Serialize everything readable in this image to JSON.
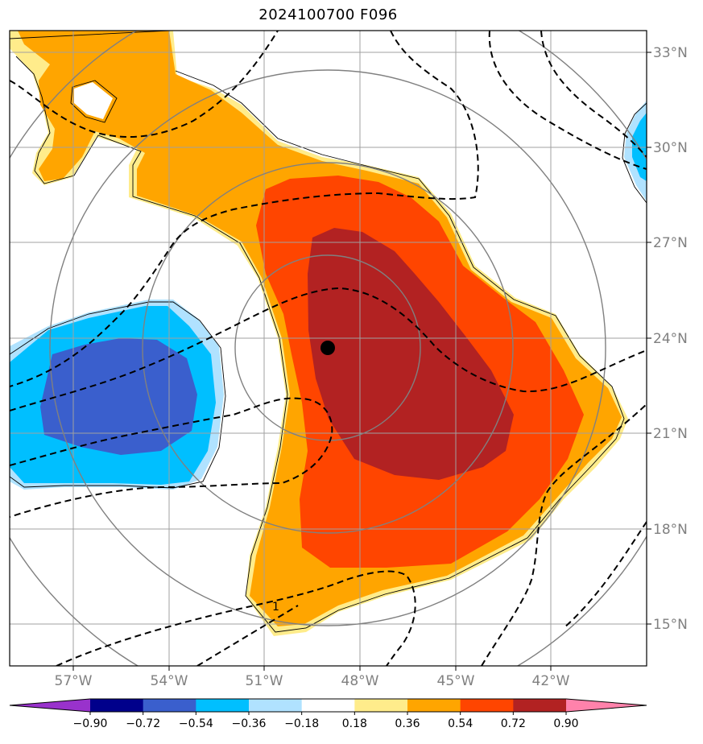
{
  "title": "2024100700 F096",
  "map": {
    "lat_labels": [
      "33°N",
      "30°N",
      "27°N",
      "24°N",
      "21°N",
      "18°N",
      "15°N"
    ],
    "lon_labels": [
      "57°W",
      "54°W",
      "51°W",
      "48°W",
      "45°W",
      "42°W"
    ],
    "contour_label": "1",
    "storm_center": {
      "lat": 23.7,
      "lon": -49.1
    }
  },
  "colorbar": {
    "labels": [
      "−0.90",
      "−0.72",
      "−0.54",
      "−0.36",
      "−0.18",
      "0.18",
      "0.36",
      "0.54",
      "0.72",
      "0.90"
    ],
    "colors": [
      "#9932cc",
      "#00008b",
      "#3a5fcd",
      "#00bfff",
      "#b0e2ff",
      "#ffffff",
      "#ffec8b",
      "#ffa500",
      "#ff4500",
      "#b22222",
      "#ff82ab"
    ]
  }
}
